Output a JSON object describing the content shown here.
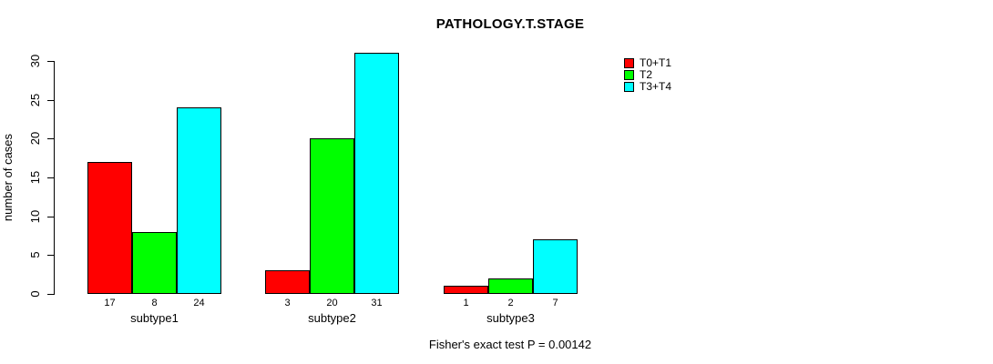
{
  "title": "PATHOLOGY.T.STAGE",
  "annotation": "Fisher's exact test P = 0.00142",
  "y_axis_label": "number of cases",
  "legend": {
    "entries": [
      {
        "label": "T0+T1",
        "color": "#ff0000"
      },
      {
        "label": "T2",
        "color": "#00ff00"
      },
      {
        "label": "T3+T4",
        "color": "#00ffff"
      }
    ]
  },
  "chart_data": {
    "type": "bar",
    "grouped": true,
    "title": "PATHOLOGY.T.STAGE",
    "xlabel": "",
    "ylabel": "number of cases",
    "categories": [
      "subtype1",
      "subtype2",
      "subtype3"
    ],
    "series": [
      {
        "name": "T0+T1",
        "color": "#ff0000",
        "values": [
          17,
          3,
          1
        ]
      },
      {
        "name": "T2",
        "color": "#00ff00",
        "values": [
          8,
          20,
          2
        ]
      },
      {
        "name": "T3+T4",
        "color": "#00ffff",
        "values": [
          24,
          31,
          7
        ]
      }
    ],
    "bar_value_labels": [
      [
        17,
        8,
        24
      ],
      [
        3,
        20,
        31
      ],
      [
        1,
        2,
        7
      ]
    ],
    "ylim": [
      0,
      30
    ],
    "yticks": [
      0,
      5,
      10,
      15,
      20,
      25,
      30
    ],
    "grid": false,
    "legend_position": "top-right",
    "annotation": "Fisher's exact test P = 0.00142"
  }
}
